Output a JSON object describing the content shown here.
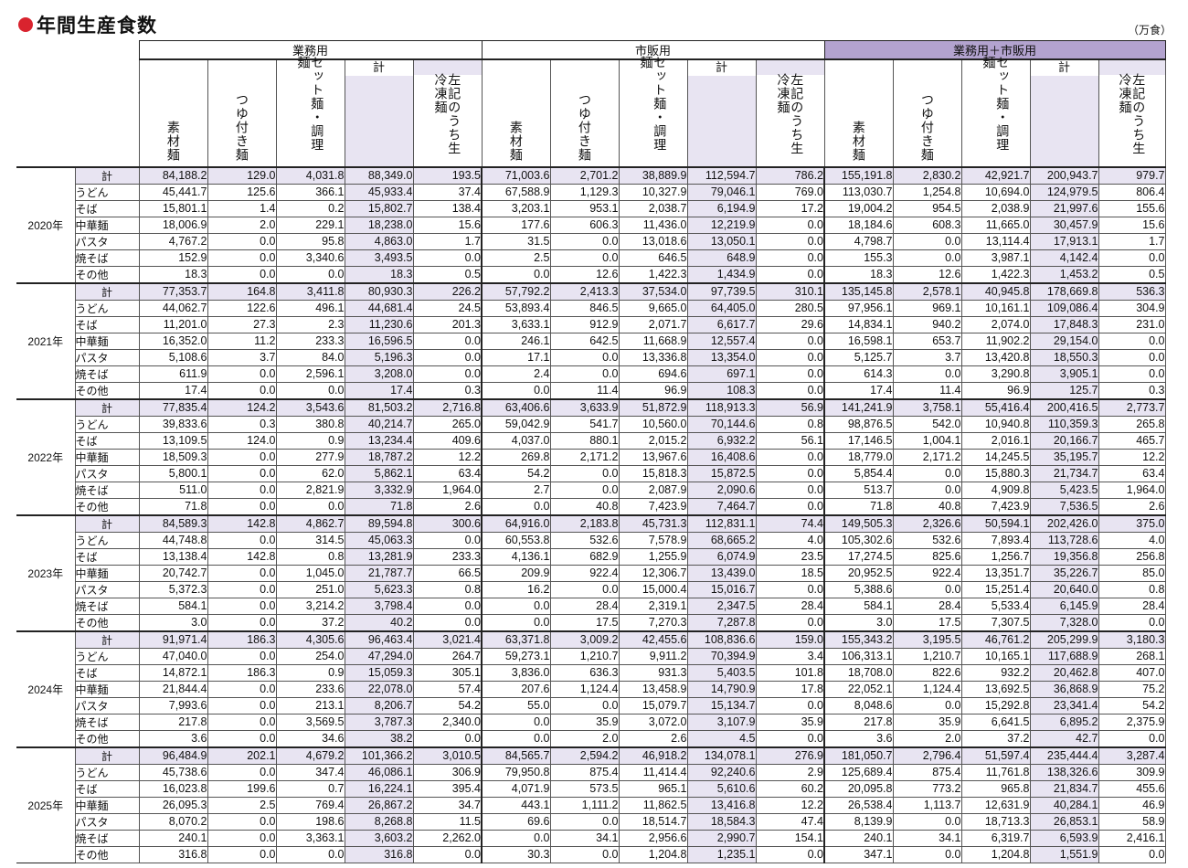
{
  "title": "年間生産食数",
  "unit": "（万食）",
  "groups": [
    "業務用",
    "市販用",
    "業務用＋市販用"
  ],
  "columns": [
    "素材麺",
    "つゆ付き麺",
    "セット麺・調理麺",
    "計",
    "左記のうち生冷凍麺"
  ],
  "row_labels": [
    "計",
    "うどん",
    "そば",
    "中華麺",
    "パスタ",
    "焼そば",
    "その他"
  ],
  "years": [
    {
      "year": "2020年",
      "rows": [
        [
          "84,188.2",
          "129.0",
          "4,031.8",
          "88,349.0",
          "193.5",
          "71,003.6",
          "2,701.2",
          "38,889.9",
          "112,594.7",
          "786.2",
          "155,191.8",
          "2,830.2",
          "42,921.7",
          "200,943.7",
          "979.7"
        ],
        [
          "45,441.7",
          "125.6",
          "366.1",
          "45,933.4",
          "37.4",
          "67,588.9",
          "1,129.3",
          "10,327.9",
          "79,046.1",
          "769.0",
          "113,030.7",
          "1,254.8",
          "10,694.0",
          "124,979.5",
          "806.4"
        ],
        [
          "15,801.1",
          "1.4",
          "0.2",
          "15,802.7",
          "138.4",
          "3,203.1",
          "953.1",
          "2,038.7",
          "6,194.9",
          "17.2",
          "19,004.2",
          "954.5",
          "2,038.9",
          "21,997.6",
          "155.6"
        ],
        [
          "18,006.9",
          "2.0",
          "229.1",
          "18,238.0",
          "15.6",
          "177.6",
          "606.3",
          "11,436.0",
          "12,219.9",
          "0.0",
          "18,184.6",
          "608.3",
          "11,665.0",
          "30,457.9",
          "15.6"
        ],
        [
          "4,767.2",
          "0.0",
          "95.8",
          "4,863.0",
          "1.7",
          "31.5",
          "0.0",
          "13,018.6",
          "13,050.1",
          "0.0",
          "4,798.7",
          "0.0",
          "13,114.4",
          "17,913.1",
          "1.7"
        ],
        [
          "152.9",
          "0.0",
          "3,340.6",
          "3,493.5",
          "0.0",
          "2.5",
          "0.0",
          "646.5",
          "648.9",
          "0.0",
          "155.3",
          "0.0",
          "3,987.1",
          "4,142.4",
          "0.0"
        ],
        [
          "18.3",
          "0.0",
          "0.0",
          "18.3",
          "0.5",
          "0.0",
          "12.6",
          "1,422.3",
          "1,434.9",
          "0.0",
          "18.3",
          "12.6",
          "1,422.3",
          "1,453.2",
          "0.5"
        ]
      ]
    },
    {
      "year": "2021年",
      "rows": [
        [
          "77,353.7",
          "164.8",
          "3,411.8",
          "80,930.3",
          "226.2",
          "57,792.2",
          "2,413.3",
          "37,534.0",
          "97,739.5",
          "310.1",
          "135,145.8",
          "2,578.1",
          "40,945.8",
          "178,669.8",
          "536.3"
        ],
        [
          "44,062.7",
          "122.6",
          "496.1",
          "44,681.4",
          "24.5",
          "53,893.4",
          "846.5",
          "9,665.0",
          "64,405.0",
          "280.5",
          "97,956.1",
          "969.1",
          "10,161.1",
          "109,086.4",
          "304.9"
        ],
        [
          "11,201.0",
          "27.3",
          "2.3",
          "11,230.6",
          "201.3",
          "3,633.1",
          "912.9",
          "2,071.7",
          "6,617.7",
          "29.6",
          "14,834.1",
          "940.2",
          "2,074.0",
          "17,848.3",
          "231.0"
        ],
        [
          "16,352.0",
          "11.2",
          "233.3",
          "16,596.5",
          "0.0",
          "246.1",
          "642.5",
          "11,668.9",
          "12,557.4",
          "0.0",
          "16,598.1",
          "653.7",
          "11,902.2",
          "29,154.0",
          "0.0"
        ],
        [
          "5,108.6",
          "3.7",
          "84.0",
          "5,196.3",
          "0.0",
          "17.1",
          "0.0",
          "13,336.8",
          "13,354.0",
          "0.0",
          "5,125.7",
          "3.7",
          "13,420.8",
          "18,550.3",
          "0.0"
        ],
        [
          "611.9",
          "0.0",
          "2,596.1",
          "3,208.0",
          "0.0",
          "2.4",
          "0.0",
          "694.6",
          "697.1",
          "0.0",
          "614.3",
          "0.0",
          "3,290.8",
          "3,905.1",
          "0.0"
        ],
        [
          "17.4",
          "0.0",
          "0.0",
          "17.4",
          "0.3",
          "0.0",
          "11.4",
          "96.9",
          "108.3",
          "0.0",
          "17.4",
          "11.4",
          "96.9",
          "125.7",
          "0.3"
        ]
      ]
    },
    {
      "year": "2022年",
      "rows": [
        [
          "77,835.4",
          "124.2",
          "3,543.6",
          "81,503.2",
          "2,716.8",
          "63,406.6",
          "3,633.9",
          "51,872.9",
          "118,913.3",
          "56.9",
          "141,241.9",
          "3,758.1",
          "55,416.4",
          "200,416.5",
          "2,773.7"
        ],
        [
          "39,833.6",
          "0.3",
          "380.8",
          "40,214.7",
          "265.0",
          "59,042.9",
          "541.7",
          "10,560.0",
          "70,144.6",
          "0.8",
          "98,876.5",
          "542.0",
          "10,940.8",
          "110,359.3",
          "265.8"
        ],
        [
          "13,109.5",
          "124.0",
          "0.9",
          "13,234.4",
          "409.6",
          "4,037.0",
          "880.1",
          "2,015.2",
          "6,932.2",
          "56.1",
          "17,146.5",
          "1,004.1",
          "2,016.1",
          "20,166.7",
          "465.7"
        ],
        [
          "18,509.3",
          "0.0",
          "277.9",
          "18,787.2",
          "12.2",
          "269.8",
          "2,171.2",
          "13,967.6",
          "16,408.6",
          "0.0",
          "18,779.0",
          "2,171.2",
          "14,245.5",
          "35,195.7",
          "12.2"
        ],
        [
          "5,800.1",
          "0.0",
          "62.0",
          "5,862.1",
          "63.4",
          "54.2",
          "0.0",
          "15,818.3",
          "15,872.5",
          "0.0",
          "5,854.4",
          "0.0",
          "15,880.3",
          "21,734.7",
          "63.4"
        ],
        [
          "511.0",
          "0.0",
          "2,821.9",
          "3,332.9",
          "1,964.0",
          "2.7",
          "0.0",
          "2,087.9",
          "2,090.6",
          "0.0",
          "513.7",
          "0.0",
          "4,909.8",
          "5,423.5",
          "1,964.0"
        ],
        [
          "71.8",
          "0.0",
          "0.0",
          "71.8",
          "2.6",
          "0.0",
          "40.8",
          "7,423.9",
          "7,464.7",
          "0.0",
          "71.8",
          "40.8",
          "7,423.9",
          "7,536.5",
          "2.6"
        ]
      ]
    },
    {
      "year": "2023年",
      "rows": [
        [
          "84,589.3",
          "142.8",
          "4,862.7",
          "89,594.8",
          "300.6",
          "64,916.0",
          "2,183.8",
          "45,731.3",
          "112,831.1",
          "74.4",
          "149,505.3",
          "2,326.6",
          "50,594.1",
          "202,426.0",
          "375.0"
        ],
        [
          "44,748.8",
          "0.0",
          "314.5",
          "45,063.3",
          "0.0",
          "60,553.8",
          "532.6",
          "7,578.9",
          "68,665.2",
          "4.0",
          "105,302.6",
          "532.6",
          "7,893.4",
          "113,728.6",
          "4.0"
        ],
        [
          "13,138.4",
          "142.8",
          "0.8",
          "13,281.9",
          "233.3",
          "4,136.1",
          "682.9",
          "1,255.9",
          "6,074.9",
          "23.5",
          "17,274.5",
          "825.6",
          "1,256.7",
          "19,356.8",
          "256.8"
        ],
        [
          "20,742.7",
          "0.0",
          "1,045.0",
          "21,787.7",
          "66.5",
          "209.9",
          "922.4",
          "12,306.7",
          "13,439.0",
          "18.5",
          "20,952.5",
          "922.4",
          "13,351.7",
          "35,226.7",
          "85.0"
        ],
        [
          "5,372.3",
          "0.0",
          "251.0",
          "5,623.3",
          "0.8",
          "16.2",
          "0.0",
          "15,000.4",
          "15,016.7",
          "0.0",
          "5,388.6",
          "0.0",
          "15,251.4",
          "20,640.0",
          "0.8"
        ],
        [
          "584.1",
          "0.0",
          "3,214.2",
          "3,798.4",
          "0.0",
          "0.0",
          "28.4",
          "2,319.1",
          "2,347.5",
          "28.4",
          "584.1",
          "28.4",
          "5,533.4",
          "6,145.9",
          "28.4"
        ],
        [
          "3.0",
          "0.0",
          "37.2",
          "40.2",
          "0.0",
          "0.0",
          "17.5",
          "7,270.3",
          "7,287.8",
          "0.0",
          "3.0",
          "17.5",
          "7,307.5",
          "7,328.0",
          "0.0"
        ]
      ]
    },
    {
      "year": "2024年",
      "rows": [
        [
          "91,971.4",
          "186.3",
          "4,305.6",
          "96,463.4",
          "3,021.4",
          "63,371.8",
          "3,009.2",
          "42,455.6",
          "108,836.6",
          "159.0",
          "155,343.2",
          "3,195.5",
          "46,761.2",
          "205,299.9",
          "3,180.3"
        ],
        [
          "47,040.0",
          "0.0",
          "254.0",
          "47,294.0",
          "264.7",
          "59,273.1",
          "1,210.7",
          "9,911.2",
          "70,394.9",
          "3.4",
          "106,313.1",
          "1,210.7",
          "10,165.1",
          "117,688.9",
          "268.1"
        ],
        [
          "14,872.1",
          "186.3",
          "0.9",
          "15,059.3",
          "305.1",
          "3,836.0",
          "636.3",
          "931.3",
          "5,403.5",
          "101.8",
          "18,708.0",
          "822.6",
          "932.2",
          "20,462.8",
          "407.0"
        ],
        [
          "21,844.4",
          "0.0",
          "233.6",
          "22,078.0",
          "57.4",
          "207.6",
          "1,124.4",
          "13,458.9",
          "14,790.9",
          "17.8",
          "22,052.1",
          "1,124.4",
          "13,692.5",
          "36,868.9",
          "75.2"
        ],
        [
          "7,993.6",
          "0.0",
          "213.1",
          "8,206.7",
          "54.2",
          "55.0",
          "0.0",
          "15,079.7",
          "15,134.7",
          "0.0",
          "8,048.6",
          "0.0",
          "15,292.8",
          "23,341.4",
          "54.2"
        ],
        [
          "217.8",
          "0.0",
          "3,569.5",
          "3,787.3",
          "2,340.0",
          "0.0",
          "35.9",
          "3,072.0",
          "3,107.9",
          "35.9",
          "217.8",
          "35.9",
          "6,641.5",
          "6,895.2",
          "2,375.9"
        ],
        [
          "3.6",
          "0.0",
          "34.6",
          "38.2",
          "0.0",
          "0.0",
          "2.0",
          "2.6",
          "4.5",
          "0.0",
          "3.6",
          "2.0",
          "37.2",
          "42.7",
          "0.0"
        ]
      ]
    },
    {
      "year": "2025年",
      "rows": [
        [
          "96,484.9",
          "202.1",
          "4,679.2",
          "101,366.2",
          "3,010.5",
          "84,565.7",
          "2,594.2",
          "46,918.2",
          "134,078.1",
          "276.9",
          "181,050.7",
          "2,796.4",
          "51,597.4",
          "235,444.4",
          "3,287.4"
        ],
        [
          "45,738.6",
          "0.0",
          "347.4",
          "46,086.1",
          "306.9",
          "79,950.8",
          "875.4",
          "11,414.4",
          "92,240.6",
          "2.9",
          "125,689.4",
          "875.4",
          "11,761.8",
          "138,326.6",
          "309.9"
        ],
        [
          "16,023.8",
          "199.6",
          "0.7",
          "16,224.1",
          "395.4",
          "4,071.9",
          "573.5",
          "965.1",
          "5,610.6",
          "60.2",
          "20,095.8",
          "773.2",
          "965.8",
          "21,834.7",
          "455.6"
        ],
        [
          "26,095.3",
          "2.5",
          "769.4",
          "26,867.2",
          "34.7",
          "443.1",
          "1,111.2",
          "11,862.5",
          "13,416.8",
          "12.2",
          "26,538.4",
          "1,113.7",
          "12,631.9",
          "40,284.1",
          "46.9"
        ],
        [
          "8,070.2",
          "0.0",
          "198.6",
          "8,268.8",
          "11.5",
          "69.6",
          "0.0",
          "18,514.7",
          "18,584.3",
          "47.4",
          "8,139.9",
          "0.0",
          "18,713.3",
          "26,853.1",
          "58.9"
        ],
        [
          "240.1",
          "0.0",
          "3,363.1",
          "3,603.2",
          "2,262.0",
          "0.0",
          "34.1",
          "2,956.6",
          "2,990.7",
          "154.1",
          "240.1",
          "34.1",
          "6,319.7",
          "6,593.9",
          "2,416.1"
        ],
        [
          "316.8",
          "0.0",
          "0.0",
          "316.8",
          "0.0",
          "30.3",
          "0.0",
          "1,204.8",
          "1,235.1",
          "0.0",
          "347.1",
          "0.0",
          "1,204.8",
          "1,551.9",
          "0.0"
        ]
      ]
    }
  ]
}
